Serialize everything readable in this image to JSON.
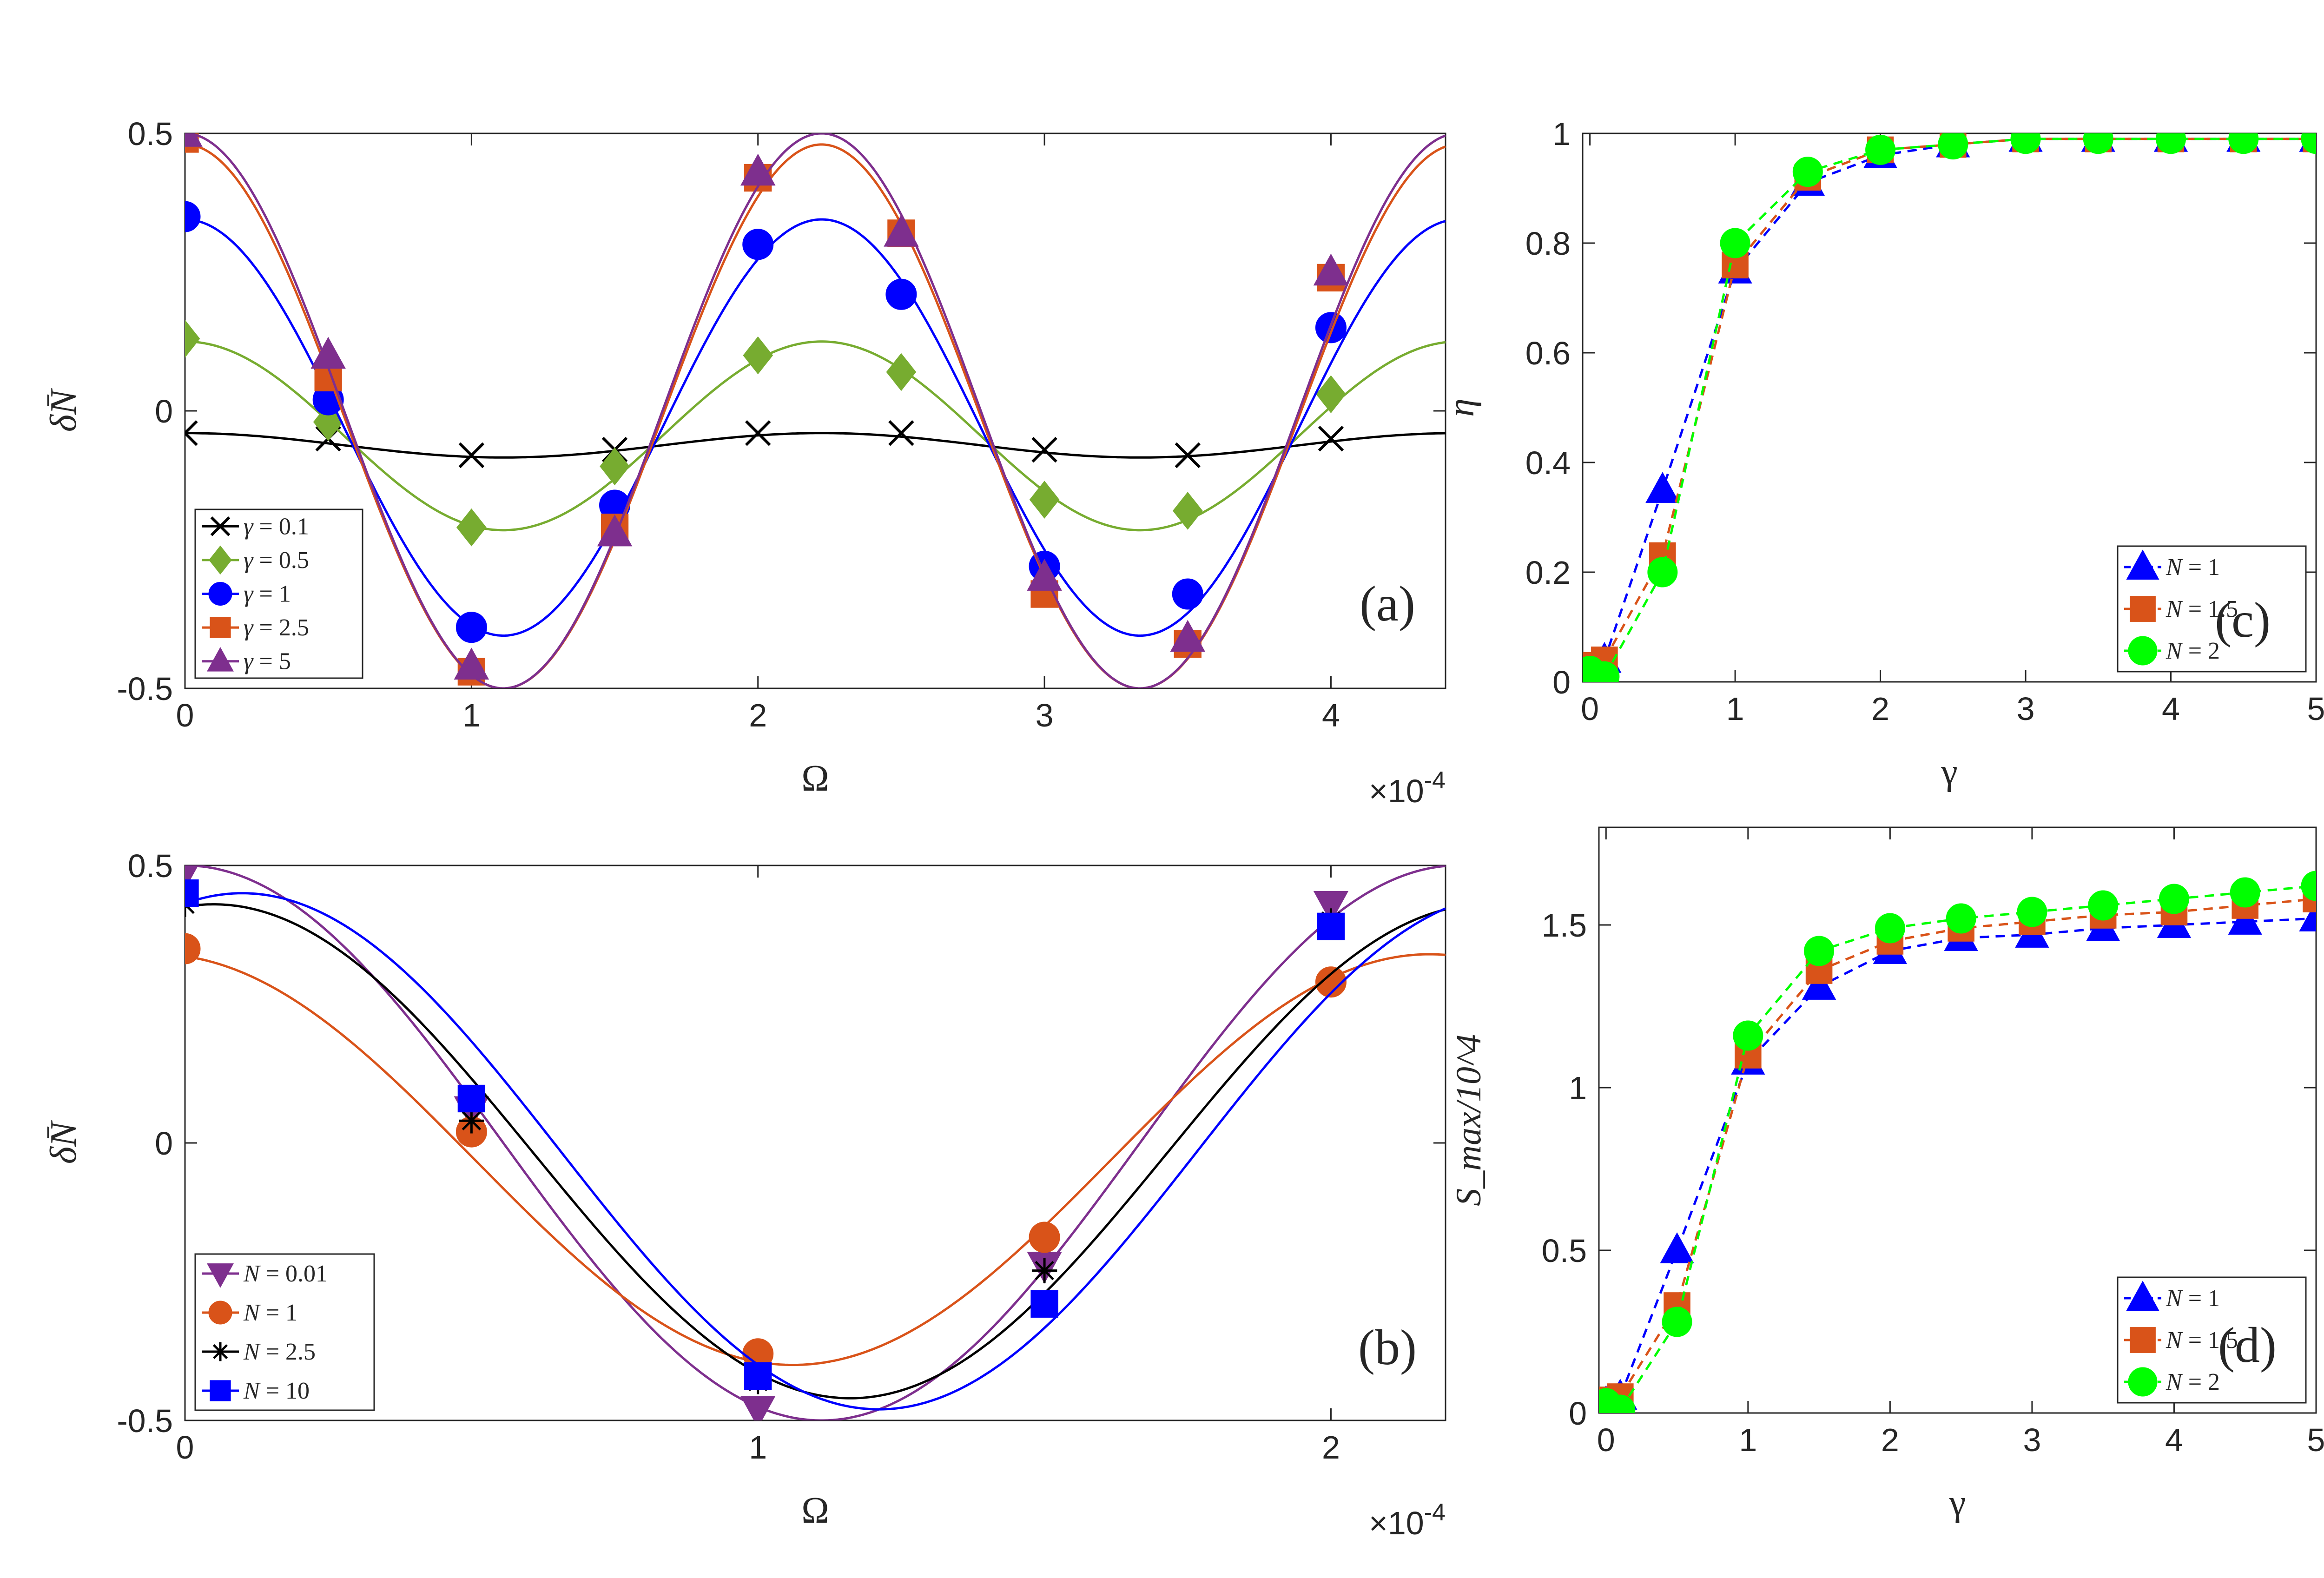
{
  "figure": {
    "exponent_label": "×10",
    "exponent_power": "-4"
  },
  "chart_data": [
    {
      "id": "a",
      "type": "line",
      "panel_label": "(a)",
      "xlabel": "Ω",
      "ylabel": "δN̄",
      "xlim": [
        0,
        4.4
      ],
      "ylim": [
        -0.5,
        0.5
      ],
      "x_ticks": [
        0,
        1,
        2,
        3,
        4
      ],
      "x_tick_labels": [
        "0",
        "1",
        "2",
        "3",
        "4"
      ],
      "y_ticks": [
        -0.5,
        0,
        0.5
      ],
      "y_tick_labels": [
        "-0.5",
        "0",
        "0.5"
      ],
      "x_multiplier": "×10^-4",
      "legend_location": "bottom-left",
      "series": [
        {
          "name": "γ = 0.1",
          "color": "#000000",
          "marker": "x",
          "curve": {
            "mean": -0.062,
            "amp": 0.022,
            "freq": 0.45
          },
          "points_x": [
            0,
            0.5,
            1,
            1.5,
            2,
            2.5,
            3,
            3.5,
            4
          ],
          "points_y": [
            -0.04,
            -0.05,
            -0.08,
            -0.07,
            -0.04,
            -0.04,
            -0.07,
            -0.08,
            -0.05
          ]
        },
        {
          "name": "γ = 0.5",
          "color": "#77AC30",
          "marker": "diamond",
          "curve": {
            "mean": -0.045,
            "amp": 0.17,
            "freq": 0.45
          },
          "points_x": [
            0,
            0.5,
            1,
            1.5,
            2,
            2.5,
            3,
            3.5,
            4
          ],
          "points_y": [
            0.13,
            -0.02,
            -0.21,
            -0.1,
            0.1,
            0.07,
            -0.16,
            -0.18,
            0.03
          ]
        },
        {
          "name": "γ = 1",
          "color": "#0000FF",
          "marker": "circle",
          "curve": {
            "mean": -0.03,
            "amp": 0.375,
            "freq": 0.45
          },
          "points_x": [
            0,
            0.5,
            1,
            1.5,
            2,
            2.5,
            3,
            3.5,
            4
          ],
          "points_y": [
            0.35,
            0.02,
            -0.39,
            -0.17,
            0.3,
            0.21,
            -0.28,
            -0.33,
            0.15
          ]
        },
        {
          "name": "γ = 2.5",
          "color": "#D95319",
          "marker": "square",
          "curve": {
            "mean": -0.01,
            "amp": 0.49,
            "freq": 0.45
          },
          "points_x": [
            0,
            0.5,
            1,
            1.5,
            2,
            2.5,
            3,
            3.5,
            4
          ],
          "points_y": [
            0.49,
            0.06,
            -0.47,
            -0.21,
            0.42,
            0.32,
            -0.33,
            -0.42,
            0.24
          ]
        },
        {
          "name": "γ = 5",
          "color": "#7E2F8E",
          "marker": "triangle-up",
          "curve": {
            "mean": 0.0,
            "amp": 0.5,
            "freq": 0.45
          },
          "points_x": [
            0,
            0.5,
            1,
            1.5,
            2,
            2.5,
            3,
            3.5,
            4
          ],
          "points_y": [
            0.5,
            0.1,
            -0.46,
            -0.22,
            0.43,
            0.32,
            -0.3,
            -0.41,
            0.25
          ]
        }
      ]
    },
    {
      "id": "b",
      "type": "line",
      "panel_label": "(b)",
      "xlabel": "Ω",
      "ylabel": "δN̄",
      "xlim": [
        0,
        2.2
      ],
      "ylim": [
        -0.5,
        0.5
      ],
      "x_ticks": [
        0,
        1,
        2
      ],
      "x_tick_labels": [
        "0",
        "1",
        "2"
      ],
      "y_ticks": [
        -0.5,
        0,
        0.5
      ],
      "y_tick_labels": [
        "-0.5",
        "0",
        "0.5"
      ],
      "x_multiplier": "×10^-4",
      "legend_location": "bottom-left",
      "series": [
        {
          "name": "N = 0.01",
          "color": "#7E2F8E",
          "marker": "triangle-down",
          "curve": {
            "mean": 0.0,
            "amp": 0.5,
            "freq": 0.45,
            "phase": 0
          },
          "points_x": [
            0,
            0.5,
            1,
            1.5,
            2
          ],
          "points_y": [
            0.49,
            0.06,
            -0.48,
            -0.22,
            0.43
          ]
        },
        {
          "name": "N = 1",
          "color": "#D95319",
          "marker": "circle",
          "curve": {
            "mean": -0.03,
            "amp": 0.37,
            "freq": 0.45,
            "phase": -0.05
          },
          "points_x": [
            0,
            0.5,
            1,
            1.5,
            2
          ],
          "points_y": [
            0.35,
            0.02,
            -0.38,
            -0.17,
            0.29
          ]
        },
        {
          "name": "N = 2.5",
          "color": "#000000",
          "marker": "asterisk",
          "curve": {
            "mean": -0.015,
            "amp": 0.445,
            "freq": 0.45,
            "phase": 0.05
          },
          "points_x": [
            0,
            0.5,
            1,
            1.5,
            2
          ],
          "points_y": [
            0.43,
            0.04,
            -0.43,
            -0.23,
            0.4
          ]
        },
        {
          "name": "N = 10",
          "color": "#0000FF",
          "marker": "square",
          "curve": {
            "mean": -0.015,
            "amp": 0.465,
            "freq": 0.45,
            "phase": 0.1
          },
          "points_x": [
            0,
            0.5,
            1,
            1.5,
            2
          ],
          "points_y": [
            0.45,
            0.08,
            -0.42,
            -0.29,
            0.39
          ]
        }
      ]
    },
    {
      "id": "c",
      "type": "line",
      "panel_label": "(c)",
      "xlabel": "γ",
      "ylabel": "η",
      "xlim": [
        -0.05,
        5
      ],
      "ylim": [
        0,
        1
      ],
      "x_ticks": [
        0,
        1,
        2,
        3,
        4,
        5
      ],
      "x_tick_labels": [
        "0",
        "1",
        "2",
        "3",
        "4",
        "5"
      ],
      "y_ticks": [
        0,
        0.2,
        0.4,
        0.6,
        0.8,
        1
      ],
      "y_tick_labels": [
        "0",
        "0.2",
        "0.4",
        "0.6",
        "0.8",
        "1"
      ],
      "legend_location": "bottom-right",
      "x": [
        0,
        0.1,
        0.5,
        1,
        1.5,
        2,
        2.5,
        3,
        3.5,
        4,
        4.5,
        5
      ],
      "series": [
        {
          "name": "N = 1",
          "color": "#0000FF",
          "marker": "triangle-up",
          "linestyle": "dashed",
          "values": [
            0.02,
            0.04,
            0.35,
            0.75,
            0.91,
            0.96,
            0.98,
            0.99,
            0.99,
            0.99,
            0.99,
            0.99
          ]
        },
        {
          "name": "N = 1.5",
          "color": "#D95319",
          "marker": "square",
          "linestyle": "dashed",
          "values": [
            0.03,
            0.04,
            0.23,
            0.76,
            0.92,
            0.97,
            0.98,
            0.99,
            0.99,
            0.99,
            0.99,
            0.99
          ]
        },
        {
          "name": "N = 2",
          "color": "#00FF00",
          "marker": "circle",
          "linestyle": "dashed",
          "values": [
            0.02,
            0.01,
            0.2,
            0.8,
            0.93,
            0.97,
            0.98,
            0.99,
            0.99,
            0.99,
            0.99,
            0.99
          ]
        }
      ]
    },
    {
      "id": "d",
      "type": "line",
      "panel_label": "(d)",
      "xlabel": "γ",
      "ylabel": "S_max/10^4",
      "xlim": [
        -0.05,
        5
      ],
      "ylim": [
        0,
        1.8
      ],
      "x_ticks": [
        0,
        1,
        2,
        3,
        4,
        5
      ],
      "x_tick_labels": [
        "0",
        "1",
        "2",
        "3",
        "4",
        "5"
      ],
      "y_ticks": [
        0,
        0.5,
        1,
        1.5
      ],
      "y_tick_labels": [
        "0",
        "0.5",
        "1",
        "1.5"
      ],
      "legend_location": "bottom-right",
      "x": [
        0,
        0.1,
        0.5,
        1,
        1.5,
        2,
        2.5,
        3,
        3.5,
        4,
        4.5,
        5
      ],
      "series": [
        {
          "name": "N = 1",
          "color": "#0000FF",
          "marker": "triangle-up",
          "linestyle": "dashed",
          "values": [
            0.03,
            0.05,
            0.5,
            1.08,
            1.31,
            1.42,
            1.46,
            1.47,
            1.49,
            1.5,
            1.51,
            1.52
          ]
        },
        {
          "name": "N = 1.5",
          "color": "#D95319",
          "marker": "square",
          "linestyle": "dashed",
          "values": [
            0.04,
            0.05,
            0.33,
            1.1,
            1.36,
            1.45,
            1.49,
            1.51,
            1.53,
            1.54,
            1.56,
            1.58
          ]
        },
        {
          "name": "N = 2",
          "color": "#00FF00",
          "marker": "circle",
          "linestyle": "dashed",
          "values": [
            0.03,
            0.01,
            0.28,
            1.16,
            1.42,
            1.49,
            1.52,
            1.54,
            1.56,
            1.58,
            1.6,
            1.62
          ]
        }
      ]
    }
  ]
}
